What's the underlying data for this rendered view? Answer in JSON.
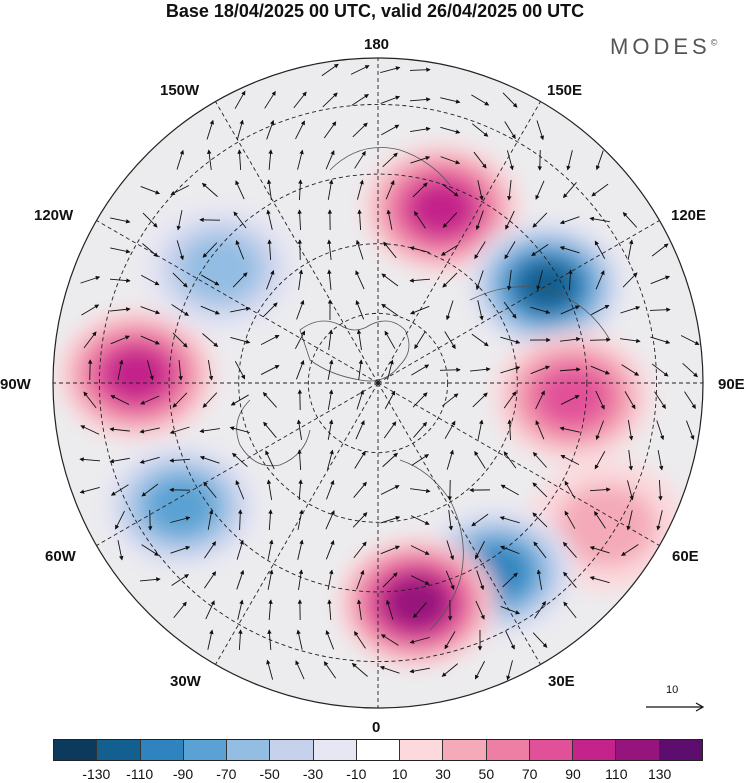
{
  "title": "Base 18/04/2025 00 UTC, valid 26/04/2025 00 UTC",
  "brand": "MODES",
  "brand_mark": "©",
  "longitude_labels": {
    "top": "180",
    "top_right": "150E",
    "right_upper": "120E",
    "right": "90E",
    "right_lower": "60E",
    "bottom_right": "30E",
    "bottom": "0",
    "bottom_left": "30W",
    "left_lower": "60W",
    "left": "90W",
    "left_upper": "120W",
    "top_left": "150W"
  },
  "reference_vector": {
    "label": "10"
  },
  "colorbar": {
    "colors": [
      "#0b3a5c",
      "#135f8f",
      "#2f84bf",
      "#5aa2d3",
      "#93bde3",
      "#c6d2ec",
      "#e7e6f3",
      "#ffffff",
      "#fbd9dd",
      "#f4aab8",
      "#ee7fa4",
      "#e1519a",
      "#c3238a",
      "#95157c",
      "#5d0d6e"
    ],
    "tick_labels": [
      "-130",
      "-110",
      "-90",
      "-70",
      "-50",
      "-30",
      "-10",
      "10",
      "30",
      "50",
      "70",
      "90",
      "110",
      "130"
    ]
  },
  "anomalies": [
    {
      "lon": 160,
      "lat": 50,
      "value": 100
    },
    {
      "lon": 120,
      "lat": 48,
      "value": -110
    },
    {
      "lon": 86,
      "lat": 48,
      "value": 80
    },
    {
      "lon": 58,
      "lat": 32,
      "value": 45
    },
    {
      "lon": 32,
      "lat": 42,
      "value": -90
    },
    {
      "lon": 10,
      "lat": 42,
      "value": 120
    },
    {
      "lon": -58,
      "lat": 40,
      "value": -70
    },
    {
      "lon": -92,
      "lat": 38,
      "value": 95
    },
    {
      "lon": -126,
      "lat": 48,
      "value": -50
    }
  ]
}
